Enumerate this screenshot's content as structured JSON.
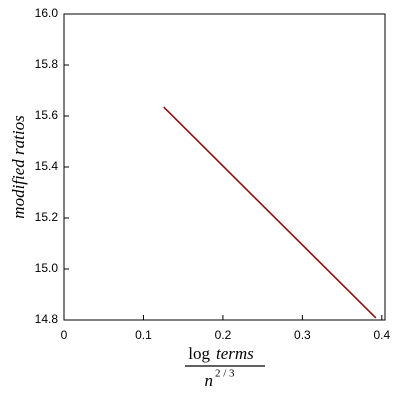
{
  "chart_data": {
    "type": "line",
    "x_label": {
      "numerator": [
        "log",
        "terms"
      ],
      "denominator": "n",
      "exponent": "2 / 3"
    },
    "y_label": "modified ratios",
    "x": [
      0.1255,
      0.3925
    ],
    "series": [
      {
        "color": "#8b1010",
        "values": [
          15.635,
          14.808
        ]
      }
    ],
    "xlim": [
      0,
      0.404
    ],
    "ylim": [
      14.8,
      16.0
    ],
    "xticks": [
      0,
      0.1,
      0.2,
      0.3,
      0.4
    ],
    "yticks": [
      {
        "value": 14.8,
        "label": "14.8"
      },
      {
        "value": 15.0,
        "label": "15.0"
      },
      {
        "value": 15.2,
        "label": "15.2"
      },
      {
        "value": 15.4,
        "label": "15.4"
      },
      {
        "value": 15.6,
        "label": "15.6"
      },
      {
        "value": 15.8,
        "label": "15.8"
      },
      {
        "value": 16.0,
        "label": "16.0"
      }
    ],
    "grid": false
  }
}
